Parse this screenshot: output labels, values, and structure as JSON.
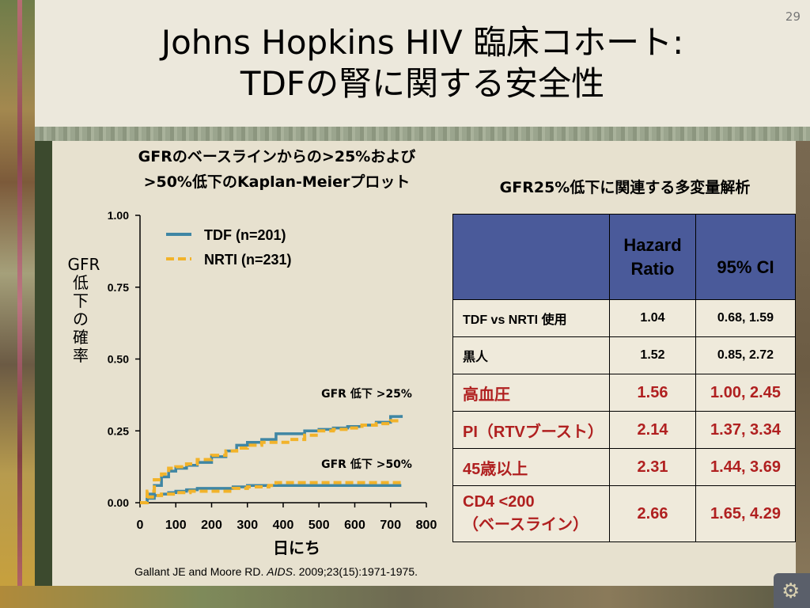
{
  "slide_number": "29",
  "title_line1": "Johns Hopkins HIV 臨床コホート:",
  "title_line2": "TDFの腎に関する安全性",
  "chart_title_line1": "GFRのベースラインからの>25%および",
  "chart_title_line2": ">50%低下のKaplan-Meierプロット",
  "ylabel_h": "GFR",
  "ylabel_v": [
    "低",
    "下",
    "の",
    "確",
    "率"
  ],
  "xlabel": "日にち",
  "citation_pre": "Gallant JE and Moore RD. ",
  "citation_journal": "AIDS",
  "citation_post": ". 2009;23(15):1971-1975.",
  "table_title": "GFR25%低下に関連する多変量解析",
  "table": {
    "headers": [
      "",
      "Hazard Ratio",
      "95% CI"
    ],
    "rows": [
      {
        "label": "TDF vs NRTI 使用",
        "hr": "1.04",
        "ci": "0.68, 1.59",
        "highlight": false
      },
      {
        "label": "黒人",
        "hr": "1.52",
        "ci": "0.85, 2.72",
        "highlight": false
      },
      {
        "label": "高血圧",
        "hr": "1.56",
        "ci": "1.00, 2.45",
        "highlight": true
      },
      {
        "label": "PI（RTVブースト）",
        "hr": "2.14",
        "ci": "1.37, 3.34",
        "highlight": true
      },
      {
        "label": "45歳以上",
        "hr": "2.31",
        "ci": "1.44, 3.69",
        "highlight": true
      },
      {
        "label": "CD4 <200\n（ベースライン）",
        "hr": "2.66",
        "ci": "1.65, 4.29",
        "highlight": true
      }
    ]
  },
  "colors": {
    "tdf": "#3f86a4",
    "nrti": "#f2b32a",
    "header_bg": "#4a5a9a",
    "highlight_text": "#b02020"
  },
  "chart_data": {
    "type": "line",
    "xlim": [
      0,
      800
    ],
    "ylim": [
      0,
      1.0
    ],
    "x_ticks": [
      "0",
      "100",
      "200",
      "300",
      "400",
      "500",
      "600",
      "700",
      "800"
    ],
    "x_tick_values": [
      0,
      100,
      200,
      300,
      400,
      500,
      600,
      700,
      800
    ],
    "y_ticks": [
      "0.00",
      "0.25",
      "0.50",
      "0.75",
      "1.00"
    ],
    "y_tick_values": [
      0,
      0.25,
      0.5,
      0.75,
      1.0
    ],
    "legend_position": "top-left",
    "annotations": [
      {
        "text": "GFR 低下 >25%",
        "x": 620,
        "y": 0.38
      },
      {
        "text": "GFR 低下 >50%",
        "x": 620,
        "y": 0.135
      }
    ],
    "series": [
      {
        "name": "TDF (n=201)",
        "key": "tdf",
        "style": "solid",
        "group": ">25%",
        "x": [
          0,
          20,
          40,
          60,
          80,
          100,
          130,
          160,
          200,
          240,
          270,
          300,
          340,
          380,
          420,
          460,
          500,
          540,
          580,
          620,
          660,
          700,
          730
        ],
        "y": [
          0,
          0.03,
          0.06,
          0.09,
          0.11,
          0.12,
          0.13,
          0.14,
          0.16,
          0.18,
          0.2,
          0.21,
          0.22,
          0.24,
          0.24,
          0.25,
          0.255,
          0.26,
          0.265,
          0.27,
          0.28,
          0.3,
          0.305
        ]
      },
      {
        "name": "NRTI (n=231)",
        "key": "nrti",
        "style": "dashed",
        "group": ">25%",
        "x": [
          0,
          20,
          40,
          60,
          80,
          100,
          130,
          160,
          200,
          240,
          270,
          300,
          340,
          380,
          420,
          460,
          500,
          540,
          580,
          620,
          660,
          700,
          730
        ],
        "y": [
          0,
          0.04,
          0.08,
          0.1,
          0.12,
          0.125,
          0.135,
          0.15,
          0.165,
          0.18,
          0.19,
          0.2,
          0.21,
          0.21,
          0.22,
          0.235,
          0.25,
          0.255,
          0.26,
          0.27,
          0.275,
          0.285,
          0.285
        ]
      },
      {
        "name": "TDF >50%",
        "key": "tdf",
        "style": "solid",
        "group": ">50%",
        "x": [
          0,
          20,
          40,
          60,
          80,
          100,
          130,
          160,
          200,
          260,
          300,
          400,
          500,
          600,
          730
        ],
        "y": [
          0,
          0.015,
          0.025,
          0.03,
          0.035,
          0.04,
          0.045,
          0.05,
          0.05,
          0.055,
          0.06,
          0.06,
          0.06,
          0.06,
          0.06
        ]
      },
      {
        "name": "NRTI >50%",
        "key": "nrti",
        "style": "dashed",
        "group": ">50%",
        "x": [
          0,
          20,
          40,
          60,
          80,
          100,
          140,
          200,
          260,
          300,
          360,
          380,
          450,
          600,
          730
        ],
        "y": [
          0,
          0.02,
          0.025,
          0.03,
          0.03,
          0.035,
          0.04,
          0.04,
          0.05,
          0.055,
          0.06,
          0.07,
          0.07,
          0.07,
          0.07
        ]
      }
    ]
  }
}
